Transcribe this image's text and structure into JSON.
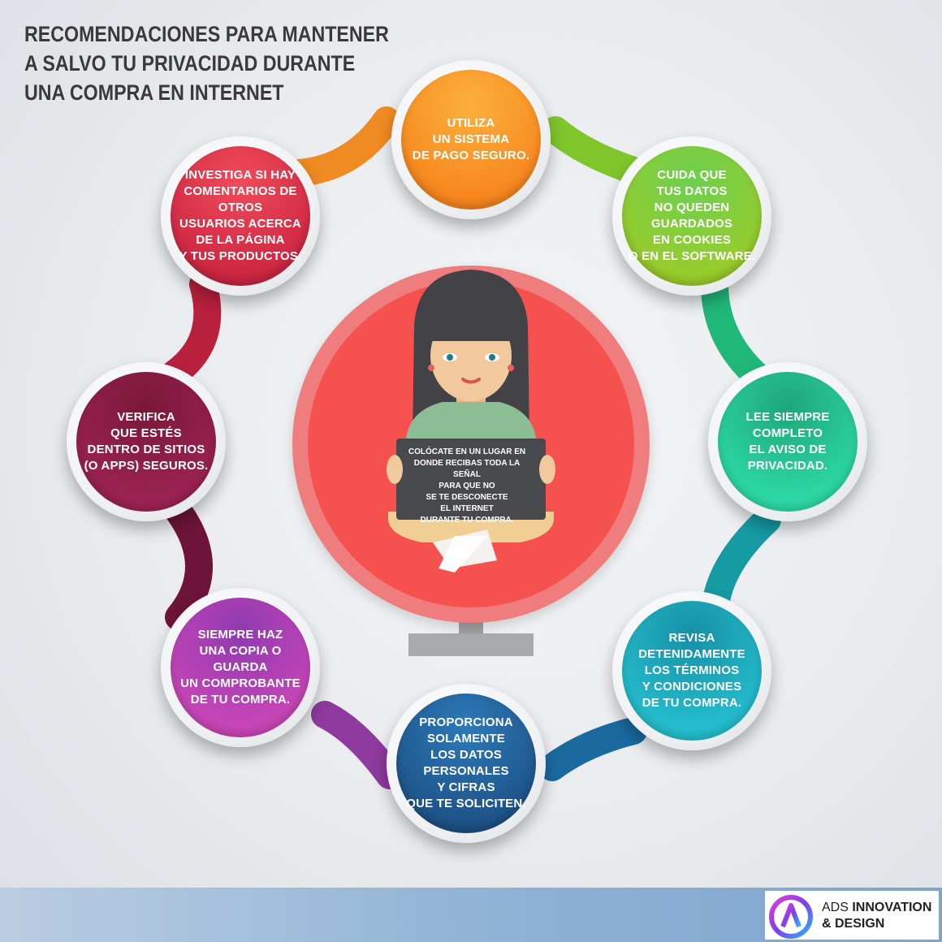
{
  "title": {
    "line1": "RECOMENDACIONES PARA MANTENER",
    "line2": "A SALVO TU PRIVACIDAD DURANTE",
    "line3": "UNA COMPRA EN INTERNET"
  },
  "tips": [
    {
      "text": "UTILIZA\nUN SISTEMA\nDE PAGO SEGURO.",
      "color": "#f7861f"
    },
    {
      "text": "CUIDA QUE\nTUS DATOS\nNO QUEDEN GUARDADOS\nEN COOKIES\nO EN EL SOFTWARE.",
      "color": "#8cc63f"
    },
    {
      "text": "LEE SIEMPRE\nCOMPLETO\nEL AVISO DE\nPRIVACIDAD.",
      "color": "#26c59a"
    },
    {
      "text": "REVISA\nDETENIDAMENTE\nLOS TÉRMINOS\nY CONDICIONES\nDE TU COMPRA.",
      "color": "#1fb0c7"
    },
    {
      "text": "PROPORCIONA\nSOLAMENTE\nLOS DATOS PERSONALES\nY CIFRAS\nQUE TE SOLICITEN.",
      "color": "#1f5f95"
    },
    {
      "text": "SIEMPRE HAZ\nUNA COPIA O GUARDA\nUN COMPROBANTE\nDE TU COMPRA.",
      "color": "#b23fb0"
    },
    {
      "text": "VERIFICA\nQUE ESTÉS\nDENTRO DE SITIOS\n(O APPS) SEGUROS.",
      "color": "#9b1d4b"
    },
    {
      "text": "INVESTIGA SI HAY\nCOMENTARIOS DE OTROS\nUSUARIOS ACERCA\nDE LA PÁGINA\nY TUS PRODUCTOS.",
      "color": "#e0334a"
    }
  ],
  "center": {
    "laptop_text": "COLÓCATE EN UN LUGAR EN\nDONDE RECIBAS TODA LA SEÑAL\nPARA QUE NO\nSE TE DESCONECTE\nEL INTERNET\nDURANTE TU COMPRA."
  },
  "brand": {
    "line1_regular": "ADS ",
    "line1_bold": "INNOVATION",
    "line2": "& DESIGN"
  }
}
